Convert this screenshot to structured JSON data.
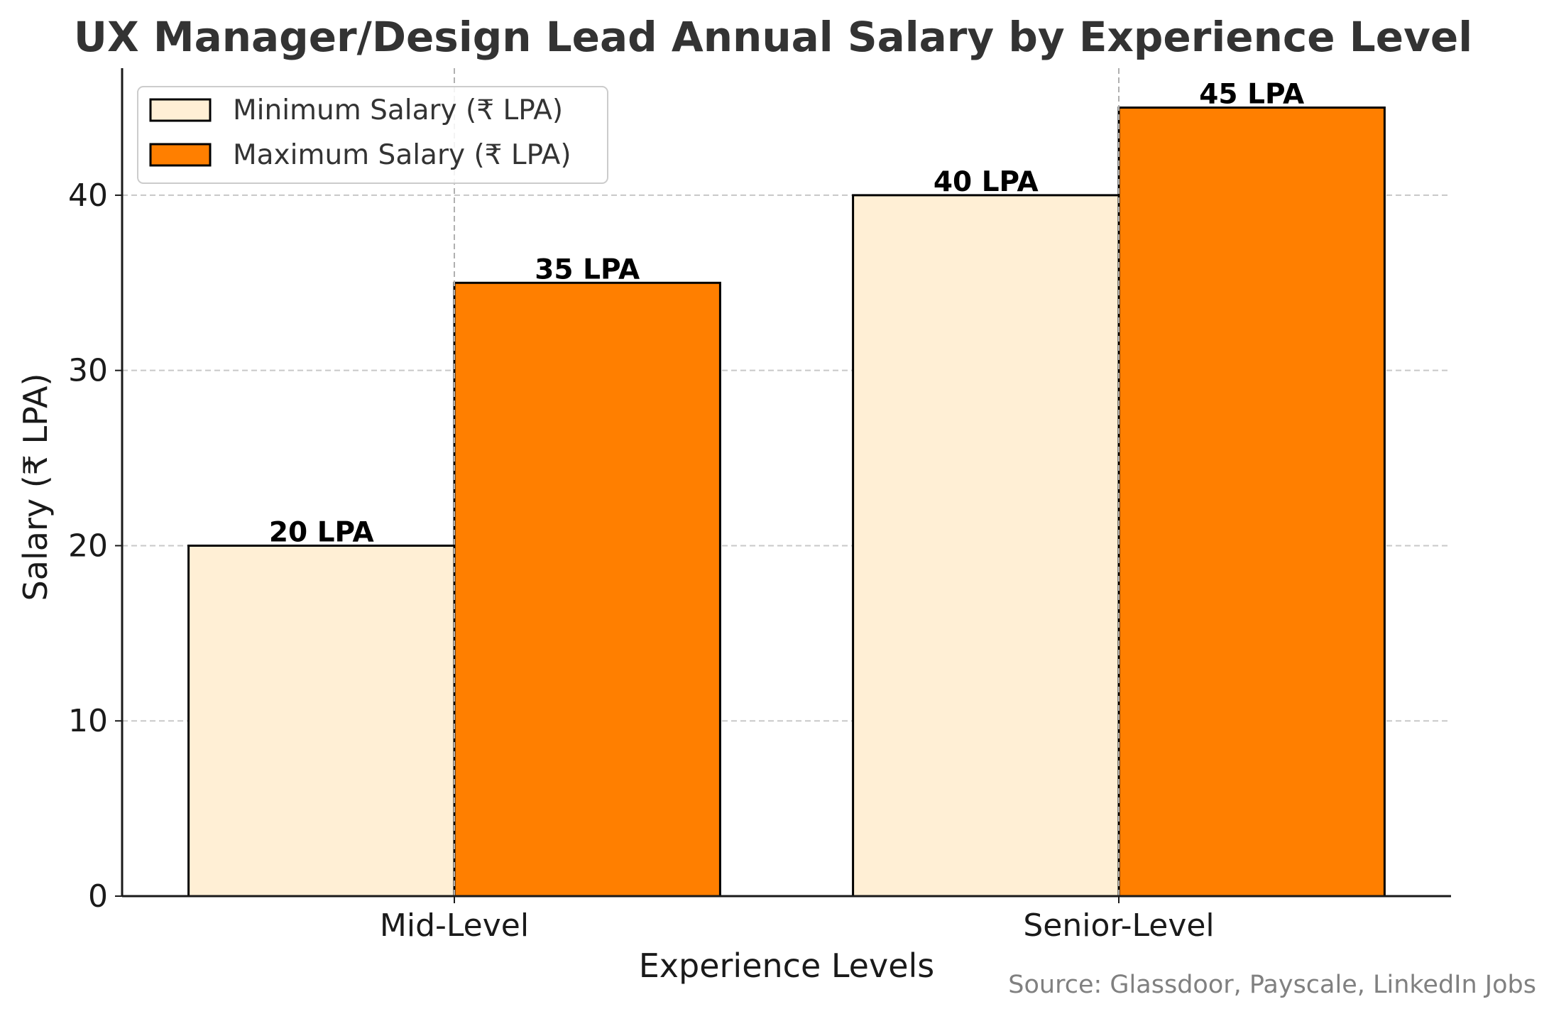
{
  "chart_data": {
    "type": "bar",
    "title": "UX Manager/Design Lead Annual Salary by Experience Level",
    "xlabel": "Experience Levels",
    "ylabel": "Salary (₹ LPA)",
    "categories": [
      "Mid-Level",
      "Senior-Level"
    ],
    "series": [
      {
        "name": "Minimum Salary (₹ LPA)",
        "values": [
          20,
          40
        ],
        "labels": [
          "20 LPA",
          "40 LPA"
        ],
        "color": "#ffefd5"
      },
      {
        "name": "Maximum Salary (₹ LPA)",
        "values": [
          35,
          45
        ],
        "labels": [
          "35 LPA",
          "45 LPA"
        ],
        "color": "#ff7f00"
      }
    ],
    "ylim": [
      0,
      47.25
    ],
    "yticks": [
      0,
      10,
      20,
      30,
      40
    ],
    "yticklabels": [
      "0",
      "10",
      "20",
      "30",
      "40"
    ],
    "grid": true,
    "legend_position": "top-left",
    "source": "Source: Glassdoor, Payscale, LinkedIn Jobs"
  }
}
